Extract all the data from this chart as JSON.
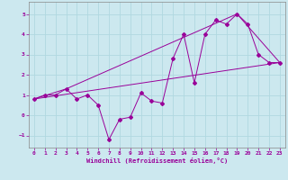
{
  "xlabel": "Windchill (Refroidissement éolien,°C)",
  "bg_color": "#cce8ef",
  "grid_color": "#b0d8e0",
  "line_color": "#990099",
  "xlim": [
    -0.5,
    23.5
  ],
  "ylim": [
    -1.6,
    5.6
  ],
  "xticks": [
    0,
    1,
    2,
    3,
    4,
    5,
    6,
    7,
    8,
    9,
    10,
    11,
    12,
    13,
    14,
    15,
    16,
    17,
    18,
    19,
    20,
    21,
    22,
    23
  ],
  "yticks": [
    -1,
    0,
    1,
    2,
    3,
    4,
    5
  ],
  "series1_x": [
    0,
    1,
    2,
    3,
    4,
    5,
    6,
    7,
    8,
    9,
    10,
    11,
    12,
    13,
    14,
    15,
    16,
    17,
    18,
    19,
    20,
    21,
    22,
    23
  ],
  "series1_y": [
    0.8,
    1.0,
    1.0,
    1.3,
    0.8,
    1.0,
    0.5,
    -1.2,
    -0.2,
    -0.1,
    1.1,
    0.7,
    0.6,
    2.8,
    4.0,
    1.6,
    4.0,
    4.7,
    4.5,
    5.0,
    4.5,
    3.0,
    2.6,
    2.6
  ],
  "series2_x": [
    0,
    23
  ],
  "series2_y": [
    0.8,
    2.6
  ],
  "series3_x": [
    0,
    3,
    19,
    23
  ],
  "series3_y": [
    0.8,
    1.3,
    5.0,
    2.6
  ]
}
